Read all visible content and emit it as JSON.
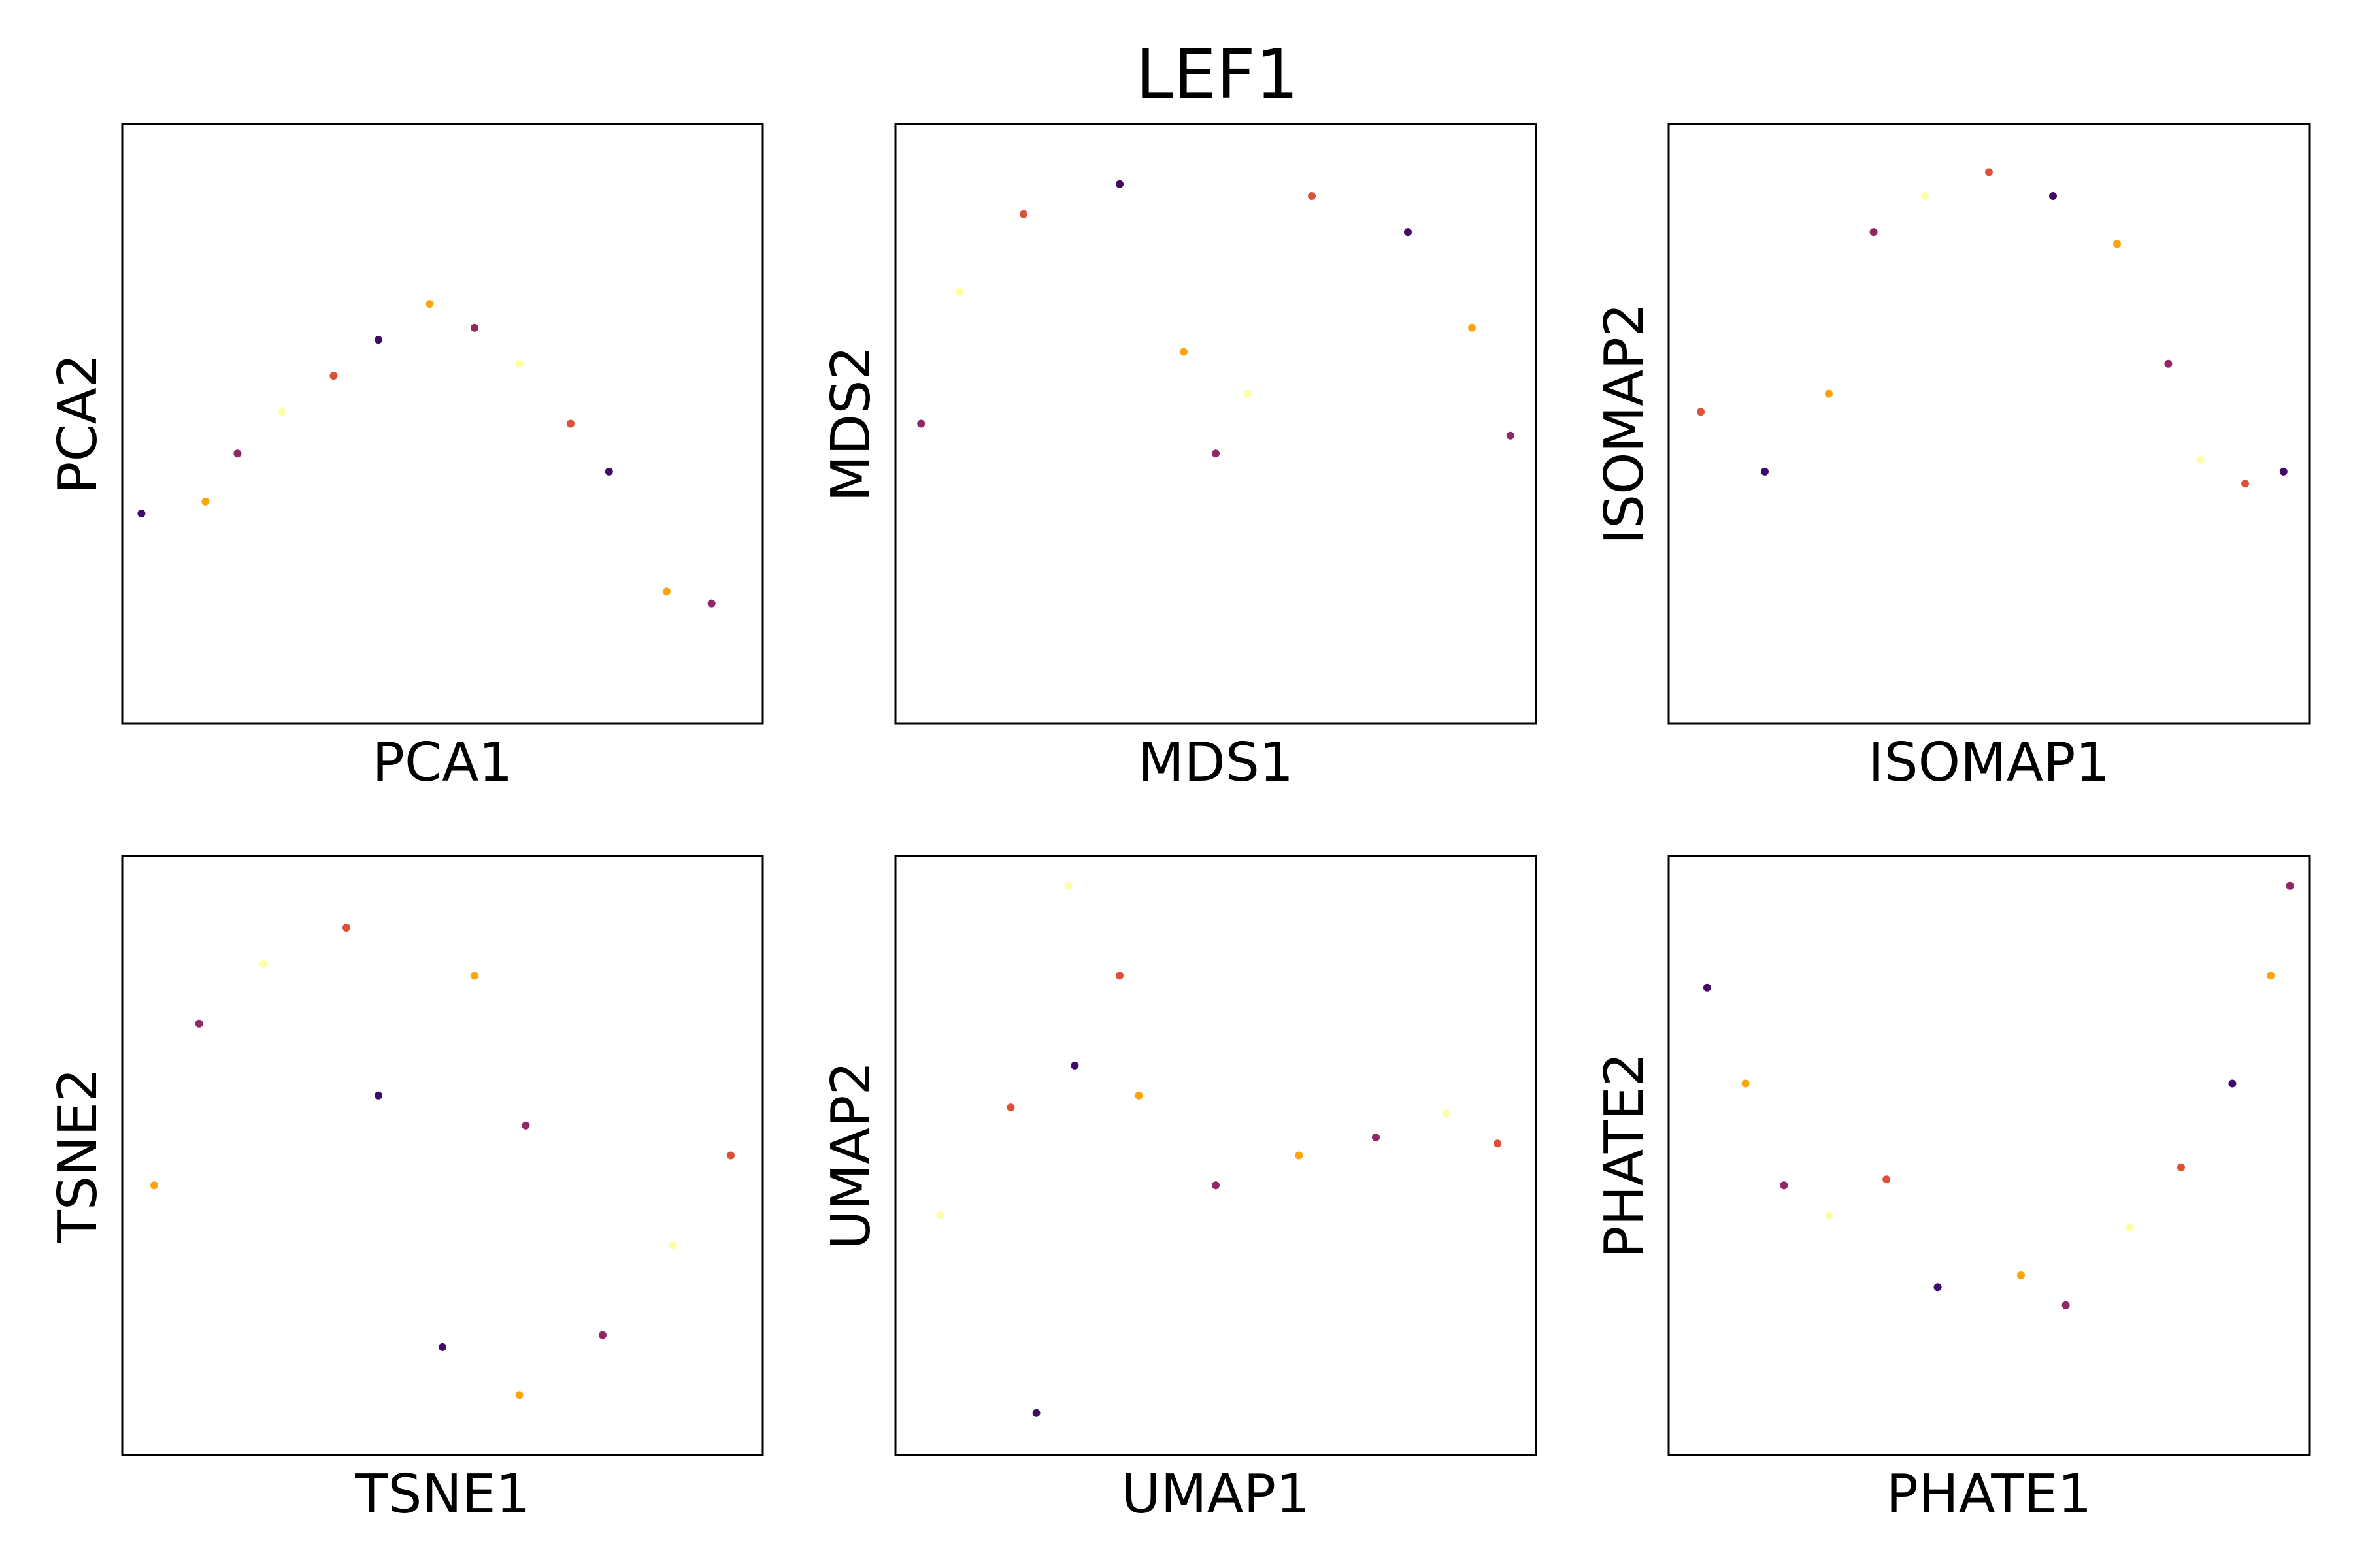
{
  "title": "LEF1",
  "colors": {
    "colormap": "inferno",
    "stops": [
      "#000004",
      "#420a68",
      "#932667",
      "#dd513a",
      "#fca50a",
      "#fcffa4"
    ],
    "axes_edge": "#000000",
    "background": "#ffffff"
  },
  "chart_data": [
    {
      "type": "scatter",
      "xlabel": "PCA1",
      "ylabel": "PCA2",
      "ylim": [
        0,
        1
      ],
      "xlim": [
        0,
        1
      ],
      "grid": false,
      "x": [
        0.03,
        0.13,
        0.18,
        0.25,
        0.33,
        0.4,
        0.48,
        0.55,
        0.62,
        0.7,
        0.76,
        0.85,
        0.92
      ],
      "y": [
        0.35,
        0.37,
        0.45,
        0.52,
        0.58,
        0.64,
        0.7,
        0.66,
        0.6,
        0.5,
        0.42,
        0.22,
        0.2
      ]
    },
    {
      "type": "scatter",
      "xlabel": "MDS1",
      "ylabel": "MDS2",
      "ylim": [
        0,
        1
      ],
      "xlim": [
        0,
        1
      ],
      "grid": false,
      "x": [
        0.04,
        0.1,
        0.2,
        0.35,
        0.45,
        0.5,
        0.55,
        0.65,
        0.8,
        0.9,
        0.96
      ],
      "y": [
        0.5,
        0.72,
        0.85,
        0.9,
        0.62,
        0.45,
        0.55,
        0.88,
        0.82,
        0.66,
        0.48
      ]
    },
    {
      "type": "scatter",
      "xlabel": "ISOMAP1",
      "ylabel": "ISOMAP2",
      "ylim": [
        0,
        1
      ],
      "xlim": [
        0,
        1
      ],
      "grid": false,
      "x": [
        0.05,
        0.15,
        0.25,
        0.32,
        0.4,
        0.5,
        0.6,
        0.7,
        0.78,
        0.83,
        0.9,
        0.96
      ],
      "y": [
        0.52,
        0.42,
        0.55,
        0.82,
        0.88,
        0.92,
        0.88,
        0.8,
        0.6,
        0.44,
        0.4,
        0.42
      ]
    },
    {
      "type": "scatter",
      "xlabel": "TSNE1",
      "ylabel": "TSNE2",
      "ylim": [
        0,
        1
      ],
      "xlim": [
        0,
        1
      ],
      "grid": false,
      "x": [
        0.05,
        0.12,
        0.22,
        0.35,
        0.5,
        0.62,
        0.75,
        0.86,
        0.95,
        0.4,
        0.55,
        0.63
      ],
      "y": [
        0.45,
        0.72,
        0.82,
        0.88,
        0.18,
        0.1,
        0.2,
        0.35,
        0.5,
        0.6,
        0.8,
        0.55
      ]
    },
    {
      "type": "scatter",
      "xlabel": "UMAP1",
      "ylabel": "UMAP2",
      "ylim": [
        0,
        1
      ],
      "xlim": [
        0,
        1
      ],
      "grid": false,
      "x": [
        0.07,
        0.18,
        0.28,
        0.38,
        0.5,
        0.27,
        0.35,
        0.22,
        0.63,
        0.75,
        0.86,
        0.94
      ],
      "y": [
        0.4,
        0.58,
        0.65,
        0.6,
        0.45,
        0.95,
        0.8,
        0.07,
        0.5,
        0.53,
        0.57,
        0.52
      ]
    },
    {
      "type": "scatter",
      "xlabel": "PHATE1",
      "ylabel": "PHATE2",
      "ylim": [
        0,
        1
      ],
      "xlim": [
        0,
        1
      ],
      "grid": false,
      "x": [
        0.06,
        0.12,
        0.18,
        0.25,
        0.34,
        0.42,
        0.55,
        0.62,
        0.72,
        0.8,
        0.88,
        0.94,
        0.97
      ],
      "y": [
        0.78,
        0.62,
        0.45,
        0.4,
        0.46,
        0.28,
        0.3,
        0.25,
        0.38,
        0.48,
        0.62,
        0.8,
        0.95
      ]
    }
  ]
}
